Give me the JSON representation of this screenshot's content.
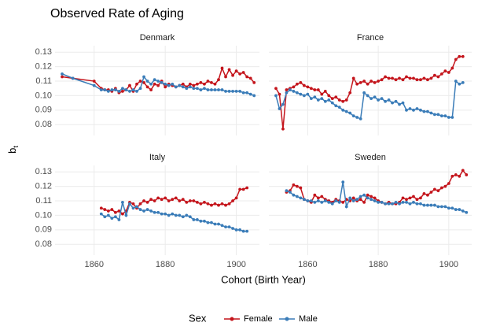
{
  "title": "Observed Rate of Aging",
  "x_label": "Cohort (Birth Year)",
  "y_label": "b",
  "y_label_sub": "t",
  "legend_title": "Sex",
  "chart_data": [
    {
      "type": "line",
      "title": "Denmark",
      "x": [
        1851,
        1854,
        1860,
        1862,
        1863,
        1864,
        1865,
        1866,
        1867,
        1868,
        1869,
        1870,
        1871,
        1872,
        1873,
        1874,
        1875,
        1876,
        1877,
        1878,
        1879,
        1880,
        1881,
        1882,
        1883,
        1884,
        1885,
        1886,
        1887,
        1888,
        1889,
        1890,
        1891,
        1892,
        1893,
        1894,
        1895,
        1896,
        1897,
        1898,
        1899,
        1900,
        1901,
        1902,
        1903,
        1904,
        1905
      ],
      "series": [
        {
          "name": "Female",
          "color": "#c4151c",
          "values": [
            0.113,
            0.112,
            0.11,
            0.105,
            0.104,
            0.104,
            0.103,
            0.105,
            0.102,
            0.103,
            0.104,
            0.107,
            0.103,
            0.108,
            0.11,
            0.109,
            0.106,
            0.104,
            0.108,
            0.107,
            0.11,
            0.106,
            0.108,
            0.107,
            0.106,
            0.107,
            0.108,
            0.106,
            0.108,
            0.107,
            0.108,
            0.109,
            0.108,
            0.11,
            0.109,
            0.108,
            0.111,
            0.119,
            0.113,
            0.118,
            0.114,
            0.117,
            0.115,
            0.116,
            0.113,
            0.112,
            0.109
          ]
        },
        {
          "name": "Male",
          "color": "#3a7cb8",
          "values": [
            0.115,
            0.112,
            0.107,
            0.104,
            0.104,
            0.103,
            0.104,
            0.104,
            0.103,
            0.105,
            0.104,
            0.103,
            0.104,
            0.103,
            0.105,
            0.113,
            0.11,
            0.108,
            0.111,
            0.11,
            0.109,
            0.108,
            0.107,
            0.108,
            0.106,
            0.107,
            0.106,
            0.105,
            0.106,
            0.105,
            0.105,
            0.104,
            0.105,
            0.104,
            0.104,
            0.104,
            0.104,
            0.104,
            0.103,
            0.103,
            0.103,
            0.103,
            0.103,
            0.102,
            0.102,
            0.101,
            0.1
          ]
        }
      ],
      "xlim": [
        1849,
        1906.5
      ],
      "xticks": [
        1860,
        1880,
        1900
      ],
      "ylim": [
        0.0725,
        0.1345
      ],
      "yticks": [
        0.08,
        0.09,
        {
          "value": 0.1,
          "label": "0.10"
        },
        0.11,
        0.12,
        0.13
      ],
      "grid": true
    },
    {
      "type": "line",
      "title": "France",
      "x": [
        1851,
        1852,
        1853,
        1854,
        1855,
        1856,
        1857,
        1858,
        1859,
        1860,
        1861,
        1862,
        1863,
        1864,
        1865,
        1866,
        1867,
        1868,
        1869,
        1870,
        1871,
        1872,
        1873,
        1874,
        1875,
        1876,
        1877,
        1878,
        1879,
        1880,
        1881,
        1882,
        1883,
        1884,
        1885,
        1886,
        1887,
        1888,
        1889,
        1890,
        1891,
        1892,
        1893,
        1894,
        1895,
        1896,
        1897,
        1898,
        1899,
        1900,
        1901,
        1902,
        1903,
        1904
      ],
      "series": [
        {
          "name": "Female",
          "color": "#c4151c",
          "values": [
            0.105,
            0.101,
            0.077,
            0.104,
            0.105,
            0.106,
            0.108,
            0.109,
            0.107,
            0.106,
            0.105,
            0.104,
            0.104,
            0.101,
            0.103,
            0.1,
            0.098,
            0.099,
            0.097,
            0.096,
            0.097,
            0.102,
            0.112,
            0.108,
            0.109,
            0.11,
            0.108,
            0.11,
            0.109,
            0.11,
            0.111,
            0.113,
            0.112,
            0.112,
            0.111,
            0.112,
            0.111,
            0.113,
            0.112,
            0.112,
            0.111,
            0.111,
            0.112,
            0.111,
            0.112,
            0.114,
            0.113,
            0.115,
            0.117,
            0.116,
            0.119,
            0.125,
            0.127,
            0.127
          ]
        },
        {
          "name": "Male",
          "color": "#3a7cb8",
          "values": [
            0.1,
            0.091,
            0.094,
            0.102,
            0.104,
            0.103,
            0.102,
            0.101,
            0.1,
            0.101,
            0.098,
            0.099,
            0.097,
            0.098,
            0.096,
            0.097,
            0.095,
            0.093,
            0.092,
            0.09,
            0.089,
            0.088,
            0.086,
            0.085,
            0.084,
            0.102,
            0.1,
            0.098,
            0.099,
            0.097,
            0.098,
            0.096,
            0.097,
            0.095,
            0.096,
            0.094,
            0.095,
            0.09,
            0.091,
            0.09,
            0.091,
            0.09,
            0.089,
            0.089,
            0.088,
            0.087,
            0.087,
            0.086,
            0.086,
            0.085,
            0.085,
            0.11,
            0.108,
            0.109
          ]
        }
      ],
      "xlim": [
        1849,
        1906.5
      ],
      "xticks": [
        1860,
        1880,
        1900
      ],
      "ylim": [
        0.0725,
        0.1345
      ],
      "yticks": [
        0.08,
        0.09,
        {
          "value": 0.1,
          "label": "0.10"
        },
        0.11,
        0.12,
        0.13
      ],
      "grid": true
    },
    {
      "type": "line",
      "title": "Italy",
      "x": [
        1862,
        1863,
        1864,
        1865,
        1866,
        1867,
        1868,
        1869,
        1870,
        1871,
        1872,
        1873,
        1874,
        1875,
        1876,
        1877,
        1878,
        1879,
        1880,
        1881,
        1882,
        1883,
        1884,
        1885,
        1886,
        1887,
        1888,
        1889,
        1890,
        1891,
        1892,
        1893,
        1894,
        1895,
        1896,
        1897,
        1898,
        1899,
        1900,
        1901,
        1902,
        1903
      ],
      "series": [
        {
          "name": "Female",
          "color": "#c4151c",
          "values": [
            0.105,
            0.104,
            0.103,
            0.104,
            0.102,
            0.103,
            0.101,
            0.103,
            0.109,
            0.108,
            0.105,
            0.108,
            0.11,
            0.109,
            0.111,
            0.11,
            0.112,
            0.111,
            0.112,
            0.11,
            0.111,
            0.112,
            0.11,
            0.111,
            0.109,
            0.11,
            0.11,
            0.109,
            0.108,
            0.109,
            0.108,
            0.107,
            0.108,
            0.107,
            0.108,
            0.107,
            0.108,
            0.11,
            0.112,
            0.118,
            0.118,
            0.119
          ]
        },
        {
          "name": "Male",
          "color": "#3a7cb8",
          "values": [
            0.101,
            0.099,
            0.1,
            0.098,
            0.099,
            0.097,
            0.109,
            0.1,
            0.108,
            0.105,
            0.106,
            0.104,
            0.103,
            0.104,
            0.103,
            0.102,
            0.102,
            0.101,
            0.101,
            0.1,
            0.101,
            0.1,
            0.1,
            0.099,
            0.1,
            0.099,
            0.097,
            0.097,
            0.096,
            0.096,
            0.095,
            0.095,
            0.094,
            0.094,
            0.093,
            0.092,
            0.092,
            0.091,
            0.09,
            0.09,
            0.089,
            0.089
          ]
        }
      ],
      "xlim": [
        1849,
        1906.5
      ],
      "xticks": [
        1860,
        1880,
        1900
      ],
      "ylim": [
        0.0725,
        0.1345
      ],
      "yticks": [
        0.08,
        0.09,
        {
          "value": 0.1,
          "label": "0.10"
        },
        0.11,
        0.12,
        0.13
      ],
      "grid": true
    },
    {
      "type": "line",
      "title": "Sweden",
      "x": [
        1854,
        1855,
        1856,
        1857,
        1858,
        1859,
        1860,
        1861,
        1862,
        1863,
        1864,
        1865,
        1866,
        1867,
        1868,
        1869,
        1870,
        1871,
        1872,
        1873,
        1874,
        1875,
        1876,
        1877,
        1878,
        1879,
        1880,
        1881,
        1882,
        1883,
        1884,
        1885,
        1886,
        1887,
        1888,
        1889,
        1890,
        1891,
        1892,
        1893,
        1894,
        1895,
        1896,
        1897,
        1898,
        1899,
        1900,
        1901,
        1902,
        1903,
        1904,
        1905
      ],
      "series": [
        {
          "name": "Female",
          "color": "#c4151c",
          "values": [
            0.116,
            0.117,
            0.121,
            0.12,
            0.119,
            0.111,
            0.11,
            0.109,
            0.114,
            0.112,
            0.113,
            0.111,
            0.11,
            0.109,
            0.111,
            0.11,
            0.109,
            0.111,
            0.11,
            0.112,
            0.11,
            0.111,
            0.109,
            0.114,
            0.113,
            0.112,
            0.11,
            0.109,
            0.108,
            0.109,
            0.108,
            0.108,
            0.109,
            0.112,
            0.111,
            0.112,
            0.113,
            0.111,
            0.112,
            0.115,
            0.114,
            0.116,
            0.118,
            0.117,
            0.119,
            0.12,
            0.122,
            0.127,
            0.128,
            0.127,
            0.131,
            0.128
          ]
        },
        {
          "name": "Male",
          "color": "#3a7cb8",
          "values": [
            0.117,
            0.116,
            0.114,
            0.113,
            0.112,
            0.111,
            0.11,
            0.11,
            0.109,
            0.11,
            0.109,
            0.11,
            0.109,
            0.108,
            0.11,
            0.109,
            0.123,
            0.106,
            0.112,
            0.11,
            0.111,
            0.113,
            0.114,
            0.112,
            0.111,
            0.11,
            0.109,
            0.109,
            0.108,
            0.108,
            0.108,
            0.109,
            0.108,
            0.109,
            0.109,
            0.108,
            0.109,
            0.108,
            0.108,
            0.107,
            0.107,
            0.107,
            0.107,
            0.106,
            0.106,
            0.106,
            0.105,
            0.105,
            0.104,
            0.104,
            0.103,
            0.102
          ]
        }
      ],
      "xlim": [
        1849,
        1906.5
      ],
      "xticks": [
        1860,
        1880,
        1900
      ],
      "ylim": [
        0.0725,
        0.1345
      ],
      "yticks": [
        0.08,
        0.09,
        {
          "value": 0.1,
          "label": "0.10"
        },
        0.11,
        0.12,
        0.13
      ],
      "grid": true
    }
  ]
}
